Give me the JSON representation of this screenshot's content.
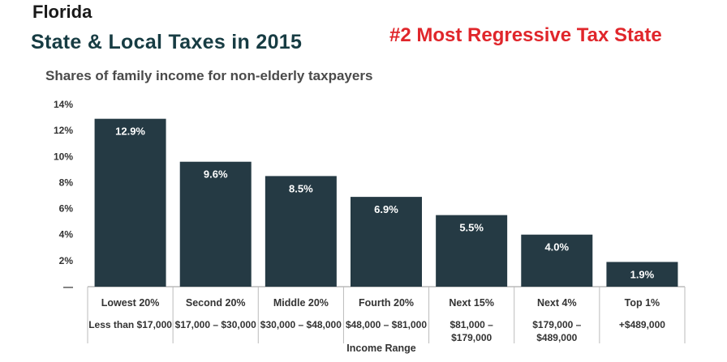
{
  "header": {
    "state": "Florida",
    "title": "State & Local Taxes in 2015",
    "rank": "#2 Most Regressive Tax State"
  },
  "chart_data": {
    "type": "bar",
    "title": "Shares of family income for non-elderly taxpayers",
    "xlabel": "Income Range",
    "ylabel": "",
    "ylim": [
      0,
      14
    ],
    "yticks": [
      "—",
      "2%",
      "4%",
      "6%",
      "8%",
      "10%",
      "12%",
      "14%"
    ],
    "categories": [
      "Lowest 20%",
      "Second 20%",
      "Middle 20%",
      "Fourth 20%",
      "Next 15%",
      "Next 4%",
      "Top 1%"
    ],
    "ranges": [
      [
        "Less than $17,000"
      ],
      [
        "$17,000 – $30,000"
      ],
      [
        "$30,000 – $48,000"
      ],
      [
        "$48,000 – $81,000"
      ],
      [
        "$81,000 –",
        "$179,000"
      ],
      [
        "$179,000 –",
        "$489,000"
      ],
      [
        "+$489,000"
      ]
    ],
    "values": [
      12.9,
      9.6,
      8.5,
      6.9,
      5.5,
      4.0,
      1.9
    ],
    "value_labels": [
      "12.9%",
      "9.6%",
      "8.5%",
      "6.9%",
      "5.5%",
      "4.0%",
      "1.9%"
    ],
    "bar_color": "#253a44",
    "grid": false
  }
}
